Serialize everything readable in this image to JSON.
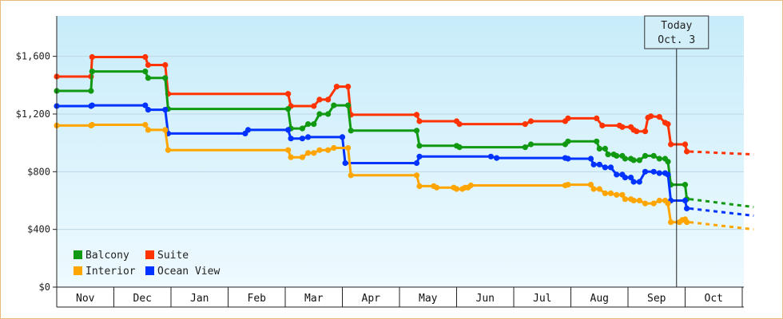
{
  "chart_data": {
    "type": "line",
    "style": "step",
    "y_ticks": [
      "$0",
      "$400",
      "$800",
      "$1,200",
      "$1,600"
    ],
    "y_tick_values": [
      0,
      400,
      800,
      1200,
      1600
    ],
    "ylim": [
      0,
      1880
    ],
    "months": [
      "Nov",
      "Dec",
      "Jan",
      "Feb",
      "Mar",
      "Apr",
      "May",
      "Jun",
      "Jul",
      "Aug",
      "Sep",
      "Oct"
    ],
    "today": {
      "line1": "Today",
      "line2": "Oct. 3",
      "x": 10.85
    },
    "legend": [
      {
        "name": "Balcony",
        "color": "#119911"
      },
      {
        "name": "Suite",
        "color": "#ff3300"
      },
      {
        "name": "Interior",
        "color": "#ffa500"
      },
      {
        "name": "Ocean View",
        "color": "#0033ff"
      }
    ],
    "series": [
      {
        "name": "Suite",
        "color": "#ff3300",
        "points": [
          [
            0.0,
            1460
          ],
          [
            0.6,
            1460
          ],
          [
            0.62,
            1595
          ],
          [
            1.55,
            1595
          ],
          [
            1.6,
            1540
          ],
          [
            1.9,
            1540
          ],
          [
            1.95,
            1340
          ],
          [
            4.05,
            1340
          ],
          [
            4.1,
            1255
          ],
          [
            4.5,
            1255
          ],
          [
            4.6,
            1300
          ],
          [
            4.75,
            1300
          ],
          [
            4.9,
            1390
          ],
          [
            5.1,
            1390
          ],
          [
            5.15,
            1195
          ],
          [
            6.3,
            1195
          ],
          [
            6.35,
            1150
          ],
          [
            7.0,
            1150
          ],
          [
            7.05,
            1130
          ],
          [
            8.2,
            1130
          ],
          [
            8.3,
            1150
          ],
          [
            8.9,
            1150
          ],
          [
            8.95,
            1170
          ],
          [
            9.45,
            1170
          ],
          [
            9.55,
            1120
          ],
          [
            9.85,
            1120
          ],
          [
            9.9,
            1110
          ],
          [
            10.05,
            1110
          ],
          [
            10.1,
            1090
          ],
          [
            10.15,
            1080
          ],
          [
            10.3,
            1080
          ],
          [
            10.35,
            1175
          ],
          [
            10.4,
            1185
          ],
          [
            10.55,
            1180
          ],
          [
            10.65,
            1140
          ],
          [
            10.7,
            1130
          ],
          [
            10.75,
            990
          ],
          [
            11.0,
            990
          ],
          [
            11.03,
            940
          ],
          [
            11.08,
            940
          ]
        ],
        "projection": [
          [
            11.08,
            940
          ],
          [
            12.2,
            920
          ]
        ]
      },
      {
        "name": "Balcony",
        "color": "#119911",
        "points": [
          [
            0.0,
            1360
          ],
          [
            0.6,
            1360
          ],
          [
            0.62,
            1495
          ],
          [
            1.55,
            1495
          ],
          [
            1.6,
            1450
          ],
          [
            1.9,
            1450
          ],
          [
            1.95,
            1235
          ],
          [
            4.05,
            1235
          ],
          [
            4.1,
            1100
          ],
          [
            4.3,
            1100
          ],
          [
            4.4,
            1130
          ],
          [
            4.5,
            1130
          ],
          [
            4.6,
            1200
          ],
          [
            4.75,
            1200
          ],
          [
            4.85,
            1260
          ],
          [
            5.1,
            1260
          ],
          [
            5.15,
            1085
          ],
          [
            6.3,
            1085
          ],
          [
            6.35,
            980
          ],
          [
            7.0,
            980
          ],
          [
            7.05,
            970
          ],
          [
            8.2,
            970
          ],
          [
            8.3,
            990
          ],
          [
            8.9,
            990
          ],
          [
            8.95,
            1010
          ],
          [
            9.45,
            1010
          ],
          [
            9.5,
            960
          ],
          [
            9.6,
            960
          ],
          [
            9.65,
            920
          ],
          [
            9.75,
            920
          ],
          [
            9.8,
            910
          ],
          [
            9.9,
            910
          ],
          [
            9.95,
            890
          ],
          [
            10.05,
            890
          ],
          [
            10.1,
            880
          ],
          [
            10.2,
            880
          ],
          [
            10.3,
            910
          ],
          [
            10.45,
            910
          ],
          [
            10.55,
            890
          ],
          [
            10.65,
            890
          ],
          [
            10.7,
            870
          ],
          [
            10.75,
            710
          ],
          [
            11.0,
            710
          ],
          [
            11.03,
            610
          ],
          [
            11.08,
            610
          ]
        ],
        "projection": [
          [
            11.08,
            610
          ],
          [
            12.2,
            555
          ]
        ]
      },
      {
        "name": "Ocean View",
        "color": "#0033ff",
        "points": [
          [
            0.0,
            1255
          ],
          [
            0.6,
            1255
          ],
          [
            0.62,
            1260
          ],
          [
            1.55,
            1260
          ],
          [
            1.6,
            1230
          ],
          [
            1.9,
            1230
          ],
          [
            1.95,
            1065
          ],
          [
            3.3,
            1065
          ],
          [
            3.35,
            1090
          ],
          [
            4.05,
            1090
          ],
          [
            4.1,
            1030
          ],
          [
            4.3,
            1030
          ],
          [
            4.4,
            1040
          ],
          [
            5.0,
            1040
          ],
          [
            5.05,
            860
          ],
          [
            6.3,
            860
          ],
          [
            6.35,
            905
          ],
          [
            7.0,
            905
          ],
          [
            7.05,
            905
          ],
          [
            7.6,
            905
          ],
          [
            7.7,
            895
          ],
          [
            8.9,
            895
          ],
          [
            8.95,
            890
          ],
          [
            9.35,
            890
          ],
          [
            9.4,
            850
          ],
          [
            9.5,
            850
          ],
          [
            9.6,
            830
          ],
          [
            9.7,
            830
          ],
          [
            9.8,
            780
          ],
          [
            9.9,
            780
          ],
          [
            9.95,
            760
          ],
          [
            10.05,
            760
          ],
          [
            10.1,
            730
          ],
          [
            10.2,
            730
          ],
          [
            10.3,
            800
          ],
          [
            10.45,
            800
          ],
          [
            10.55,
            790
          ],
          [
            10.65,
            790
          ],
          [
            10.7,
            780
          ],
          [
            10.75,
            600
          ],
          [
            11.0,
            600
          ],
          [
            11.03,
            545
          ],
          [
            11.08,
            545
          ]
        ],
        "projection": [
          [
            11.08,
            545
          ],
          [
            12.2,
            495
          ]
        ]
      },
      {
        "name": "Interior",
        "color": "#ffa500",
        "points": [
          [
            0.0,
            1120
          ],
          [
            0.6,
            1120
          ],
          [
            0.62,
            1125
          ],
          [
            1.55,
            1125
          ],
          [
            1.6,
            1090
          ],
          [
            1.9,
            1090
          ],
          [
            1.95,
            950
          ],
          [
            4.05,
            950
          ],
          [
            4.1,
            900
          ],
          [
            4.3,
            900
          ],
          [
            4.4,
            930
          ],
          [
            4.5,
            930
          ],
          [
            4.6,
            950
          ],
          [
            4.75,
            950
          ],
          [
            4.85,
            965
          ],
          [
            5.1,
            965
          ],
          [
            5.15,
            775
          ],
          [
            6.3,
            775
          ],
          [
            6.35,
            700
          ],
          [
            6.6,
            700
          ],
          [
            6.65,
            690
          ],
          [
            6.95,
            690
          ],
          [
            7.0,
            680
          ],
          [
            7.1,
            680
          ],
          [
            7.15,
            690
          ],
          [
            7.2,
            690
          ],
          [
            7.25,
            705
          ],
          [
            8.9,
            705
          ],
          [
            8.95,
            710
          ],
          [
            9.35,
            710
          ],
          [
            9.4,
            680
          ],
          [
            9.5,
            680
          ],
          [
            9.6,
            650
          ],
          [
            9.7,
            650
          ],
          [
            9.8,
            640
          ],
          [
            9.9,
            640
          ],
          [
            9.95,
            610
          ],
          [
            10.05,
            610
          ],
          [
            10.1,
            600
          ],
          [
            10.2,
            600
          ],
          [
            10.3,
            580
          ],
          [
            10.45,
            580
          ],
          [
            10.55,
            600
          ],
          [
            10.65,
            600
          ],
          [
            10.7,
            580
          ],
          [
            10.75,
            450
          ],
          [
            10.9,
            450
          ],
          [
            10.95,
            465
          ],
          [
            11.0,
            470
          ],
          [
            11.03,
            450
          ],
          [
            11.08,
            450
          ]
        ],
        "projection": [
          [
            11.08,
            450
          ],
          [
            12.2,
            400
          ]
        ]
      }
    ]
  }
}
